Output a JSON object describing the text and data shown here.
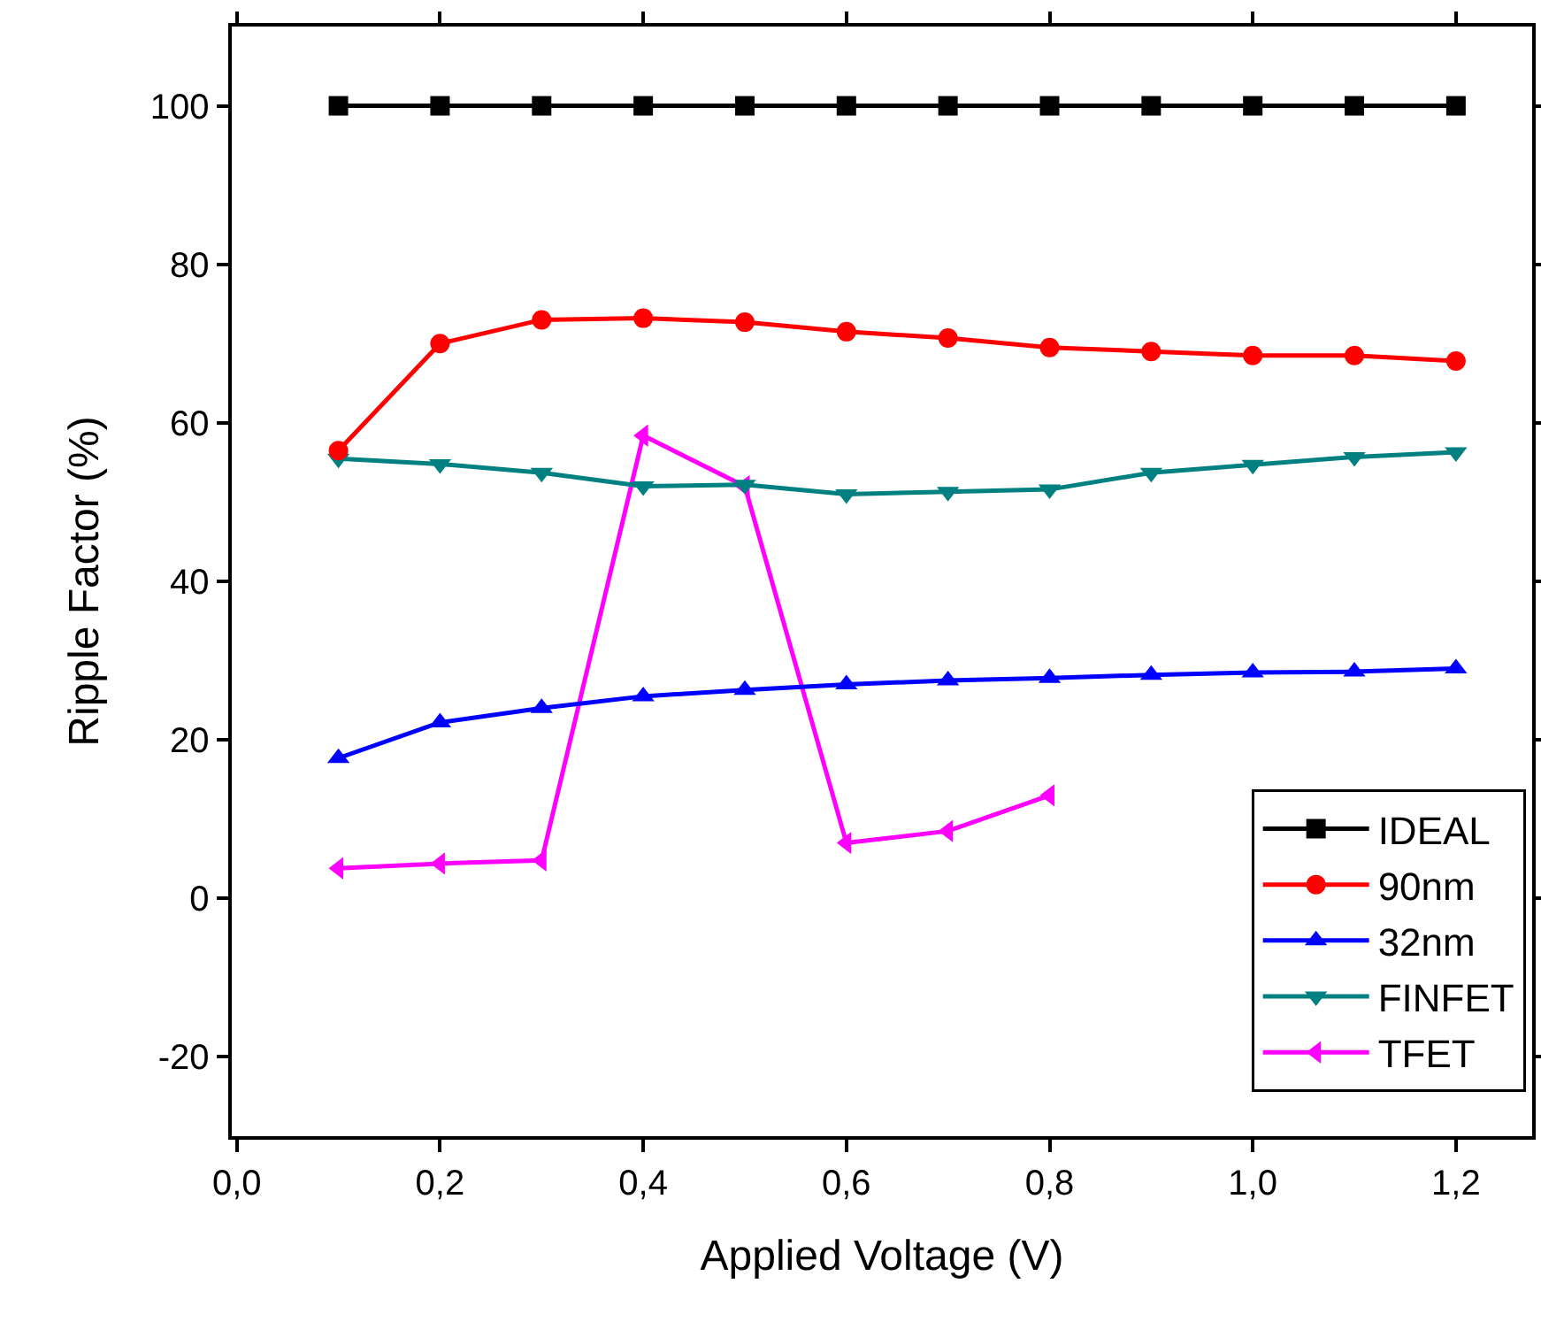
{
  "chart_data": {
    "type": "line",
    "xlabel": "Applied Voltage (V)",
    "ylabel": "Ripple Factor (%)",
    "xlim": [
      -0.005,
      1.275
    ],
    "ylim": [
      -30,
      110
    ],
    "xticks": [
      {
        "value": 0,
        "label": "0,0"
      },
      {
        "value": 0.2,
        "label": "0,2"
      },
      {
        "value": 0.4,
        "label": "0,4"
      },
      {
        "value": 0.6,
        "label": "0,6"
      },
      {
        "value": 0.8,
        "label": "0,8"
      },
      {
        "value": 1.0,
        "label": "1,0"
      },
      {
        "value": 1.2,
        "label": "1,2"
      }
    ],
    "yticks": [
      -20,
      0,
      20,
      40,
      60,
      80,
      100
    ],
    "x": [
      0.1,
      0.2,
      0.3,
      0.4,
      0.5,
      0.6,
      0.7,
      0.8,
      0.9,
      1.0,
      1.1,
      1.2
    ],
    "grid": false,
    "legend": "bottom right",
    "line_style": "solid",
    "series": [
      {
        "name": "IDEAL",
        "color": "#000000",
        "marker": "square",
        "values": [
          100,
          100,
          100,
          100,
          100,
          100,
          100,
          100,
          100,
          100,
          100,
          100
        ]
      },
      {
        "name": "90nm",
        "color": "#ff0000",
        "marker": "circle",
        "values": [
          56.5,
          70,
          73,
          73.2,
          72.7,
          71.5,
          70.7,
          69.5,
          69,
          68.5,
          68.5,
          67.8
        ]
      },
      {
        "name": "32nm",
        "color": "#0000ff",
        "marker": "triangle",
        "values": [
          17.7,
          22.2,
          24,
          25.5,
          26.3,
          27,
          27.5,
          27.8,
          28.2,
          28.5,
          28.6,
          29
        ]
      },
      {
        "name": "FINFET",
        "color": "#008080",
        "marker": "triangle-down",
        "values": [
          55.5,
          54.8,
          53.7,
          52,
          52.2,
          51,
          51.3,
          51.6,
          53.7,
          54.7,
          55.7,
          56.3
        ]
      },
      {
        "name": "TFET",
        "color": "#ff00ff",
        "marker": "triangle-left",
        "x": [
          0.1,
          0.2,
          0.3,
          0.4,
          0.5,
          0.6,
          0.7,
          0.8
        ],
        "values": [
          3.8,
          4.4,
          4.8,
          58.4,
          52,
          7,
          8.5,
          13
        ]
      }
    ]
  }
}
